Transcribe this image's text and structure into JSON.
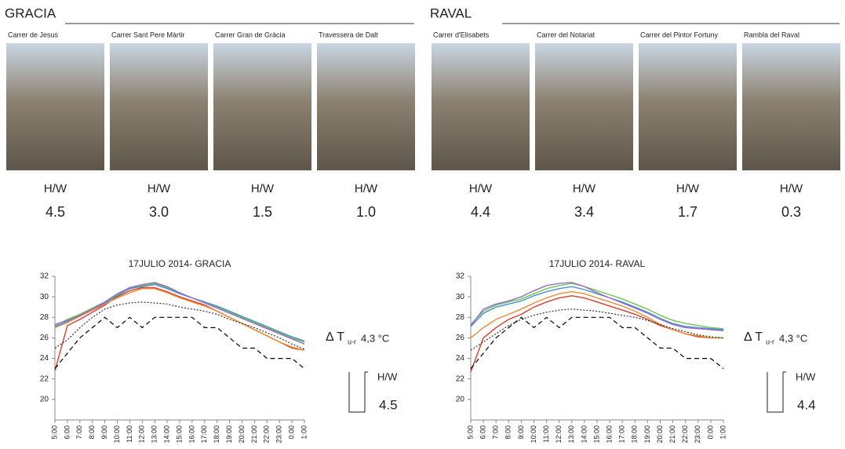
{
  "panels": [
    {
      "title": "GRACIA",
      "streets": [
        {
          "name": "Carrer de Jesus",
          "ratio_label": "H/W",
          "ratio": "4.5"
        },
        {
          "name": "Carrer Sant Pere Màrtir",
          "ratio_label": "H/W",
          "ratio": "3.0"
        },
        {
          "name": "Carrer Gran de Gràcia",
          "ratio_label": "H/W",
          "ratio": "1.5"
        },
        {
          "name": "Travessera de Dalt",
          "ratio_label": "H/W",
          "ratio": "1.0"
        }
      ]
    },
    {
      "title": "RAVAL",
      "streets": [
        {
          "name": "Carrer d'Elisabets",
          "ratio_label": "H/W",
          "ratio": "4.4"
        },
        {
          "name": "Carrer del Notariat",
          "ratio_label": "H/W",
          "ratio": "3.4"
        },
        {
          "name": "Carrer del Pintor Fortuny",
          "ratio_label": "H/W",
          "ratio": "1.7"
        },
        {
          "name": "Rambla del Raval",
          "ratio_label": "H/W",
          "ratio": "0.3"
        }
      ]
    }
  ],
  "chart_data": [
    {
      "type": "line",
      "title": "17JULIO 2014- GRACIA",
      "categories": [
        "5:00",
        "6:00",
        "7:00",
        "8:00",
        "9:00",
        "10:00",
        "11:00",
        "12:00",
        "13:00",
        "14:00",
        "15:00",
        "16:00",
        "17:00",
        "18:00",
        "19:00",
        "20:00",
        "21:00",
        "22:00",
        "23:00",
        "0:00",
        "1:00"
      ],
      "ylim": [
        18,
        32
      ],
      "yticks": [
        20,
        22,
        24,
        26,
        28,
        30,
        32
      ],
      "series": [
        {
          "color": "#e03a2a",
          "dash": "solid",
          "values": [
            22.8,
            27.2,
            27.8,
            28.5,
            29.2,
            30.0,
            30.6,
            30.9,
            30.9,
            30.5,
            30.0,
            29.6,
            29.2,
            28.6,
            28.0,
            27.4,
            26.8,
            26.2,
            25.6,
            25.0,
            24.8
          ]
        },
        {
          "color": "#f08a30",
          "dash": "solid",
          "values": [
            27.0,
            27.5,
            28.1,
            28.7,
            29.3,
            29.9,
            30.4,
            30.8,
            30.8,
            30.4,
            29.9,
            29.5,
            29.1,
            28.6,
            28.0,
            27.4,
            26.8,
            26.2,
            25.6,
            25.1,
            24.8
          ]
        },
        {
          "color": "#6ac94a",
          "dash": "solid",
          "values": [
            27.2,
            27.8,
            28.3,
            28.9,
            29.5,
            30.2,
            30.9,
            31.1,
            31.3,
            30.9,
            30.4,
            29.9,
            29.5,
            29.0,
            28.5,
            28.0,
            27.5,
            27.0,
            26.5,
            26.0,
            25.6
          ]
        },
        {
          "color": "#4a90d0",
          "dash": "solid",
          "values": [
            27.1,
            27.6,
            28.2,
            28.8,
            29.4,
            30.1,
            30.8,
            31.0,
            31.2,
            30.8,
            30.3,
            29.9,
            29.5,
            29.1,
            28.6,
            28.1,
            27.6,
            27.1,
            26.6,
            26.1,
            25.7
          ]
        },
        {
          "color": "#9a6ac8",
          "dash": "solid",
          "values": [
            27.3,
            27.7,
            28.2,
            28.8,
            29.5,
            30.3,
            30.9,
            31.2,
            31.4,
            31.0,
            30.4,
            29.9,
            29.4,
            28.9,
            28.4,
            27.9,
            27.4,
            26.9,
            26.4,
            25.9,
            25.4
          ]
        },
        {
          "color": "#333333",
          "dash": "dotted",
          "values": [
            25.0,
            25.8,
            27.0,
            28.0,
            28.8,
            29.2,
            29.4,
            29.5,
            29.4,
            29.3,
            29.0,
            28.8,
            28.6,
            28.3,
            27.8,
            27.4,
            27.0,
            26.5,
            26.0,
            25.4,
            24.9
          ]
        },
        {
          "color": "#000000",
          "dash": "dashed",
          "values": [
            23.0,
            24.5,
            26.0,
            27.0,
            28.0,
            27.0,
            28.0,
            27.0,
            28.0,
            28.0,
            28.0,
            28.0,
            27.0,
            27.0,
            26.0,
            25.0,
            25.0,
            24.0,
            24.0,
            24.0,
            23.0
          ]
        }
      ],
      "annotations": {
        "delta": "Δ T",
        "subscript": "u-r",
        "delta_value": "4,3 °C",
        "ratio_label": "H/W",
        "ratio": "4.5"
      }
    },
    {
      "type": "line",
      "title": "17JULIO 2014- RAVAL",
      "categories": [
        "5:00",
        "6:00",
        "7:00",
        "8:00",
        "9:00",
        "10:00",
        "11:00",
        "12:00",
        "13:00",
        "14:00",
        "15:00",
        "16:00",
        "17:00",
        "18:00",
        "19:00",
        "20:00",
        "21:00",
        "22:00",
        "23:00",
        "0:00",
        "1:00"
      ],
      "ylim": [
        18,
        32
      ],
      "yticks": [
        20,
        22,
        24,
        26,
        28,
        30,
        32
      ],
      "series": [
        {
          "color": "#e03a2a",
          "dash": "solid",
          "values": [
            22.7,
            26.0,
            27.0,
            27.8,
            28.3,
            29.0,
            29.5,
            29.9,
            30.1,
            29.9,
            29.5,
            29.1,
            28.7,
            28.3,
            27.8,
            27.2,
            26.8,
            26.4,
            26.1,
            26.0,
            26.0
          ]
        },
        {
          "color": "#f08a30",
          "dash": "solid",
          "values": [
            26.0,
            27.0,
            27.8,
            28.3,
            28.8,
            29.4,
            29.9,
            30.3,
            30.5,
            30.3,
            29.9,
            29.5,
            29.1,
            28.6,
            28.0,
            27.3,
            26.8,
            26.4,
            26.2,
            26.0,
            26.0
          ]
        },
        {
          "color": "#6ac94a",
          "dash": "solid",
          "values": [
            27.3,
            28.6,
            29.2,
            29.5,
            29.8,
            30.3,
            30.8,
            31.1,
            31.3,
            31.0,
            30.6,
            30.2,
            29.8,
            29.3,
            28.8,
            28.2,
            27.7,
            27.4,
            27.2,
            27.0,
            26.9
          ]
        },
        {
          "color": "#4a90d0",
          "dash": "solid",
          "values": [
            27.1,
            28.4,
            29.0,
            29.3,
            29.6,
            30.1,
            30.5,
            30.8,
            31.0,
            30.7,
            30.3,
            29.9,
            29.5,
            29.0,
            28.5,
            27.9,
            27.4,
            27.1,
            27.0,
            26.9,
            26.8
          ]
        },
        {
          "color": "#9a6ac8",
          "dash": "solid",
          "values": [
            27.2,
            28.8,
            29.3,
            29.6,
            30.0,
            30.6,
            31.1,
            31.3,
            31.4,
            31.0,
            30.4,
            29.9,
            29.4,
            28.9,
            28.4,
            27.8,
            27.3,
            27.0,
            26.9,
            26.8,
            26.7
          ]
        },
        {
          "color": "#333333",
          "dash": "dotted",
          "values": [
            24.8,
            25.6,
            26.4,
            27.2,
            27.8,
            28.2,
            28.5,
            28.7,
            28.8,
            28.7,
            28.6,
            28.4,
            28.2,
            28.0,
            27.7,
            27.3,
            26.9,
            26.6,
            26.3,
            26.1,
            26.0
          ]
        },
        {
          "color": "#000000",
          "dash": "dashed",
          "values": [
            23.0,
            24.5,
            26.0,
            27.0,
            28.0,
            27.0,
            28.0,
            27.0,
            28.0,
            28.0,
            28.0,
            28.0,
            27.0,
            27.0,
            26.0,
            25.0,
            25.0,
            24.0,
            24.0,
            24.0,
            23.0
          ]
        }
      ],
      "annotations": {
        "delta": "Δ T",
        "subscript": "u-r",
        "delta_value": "4,3 °C",
        "ratio_label": "H/W",
        "ratio": "4.4"
      }
    }
  ]
}
